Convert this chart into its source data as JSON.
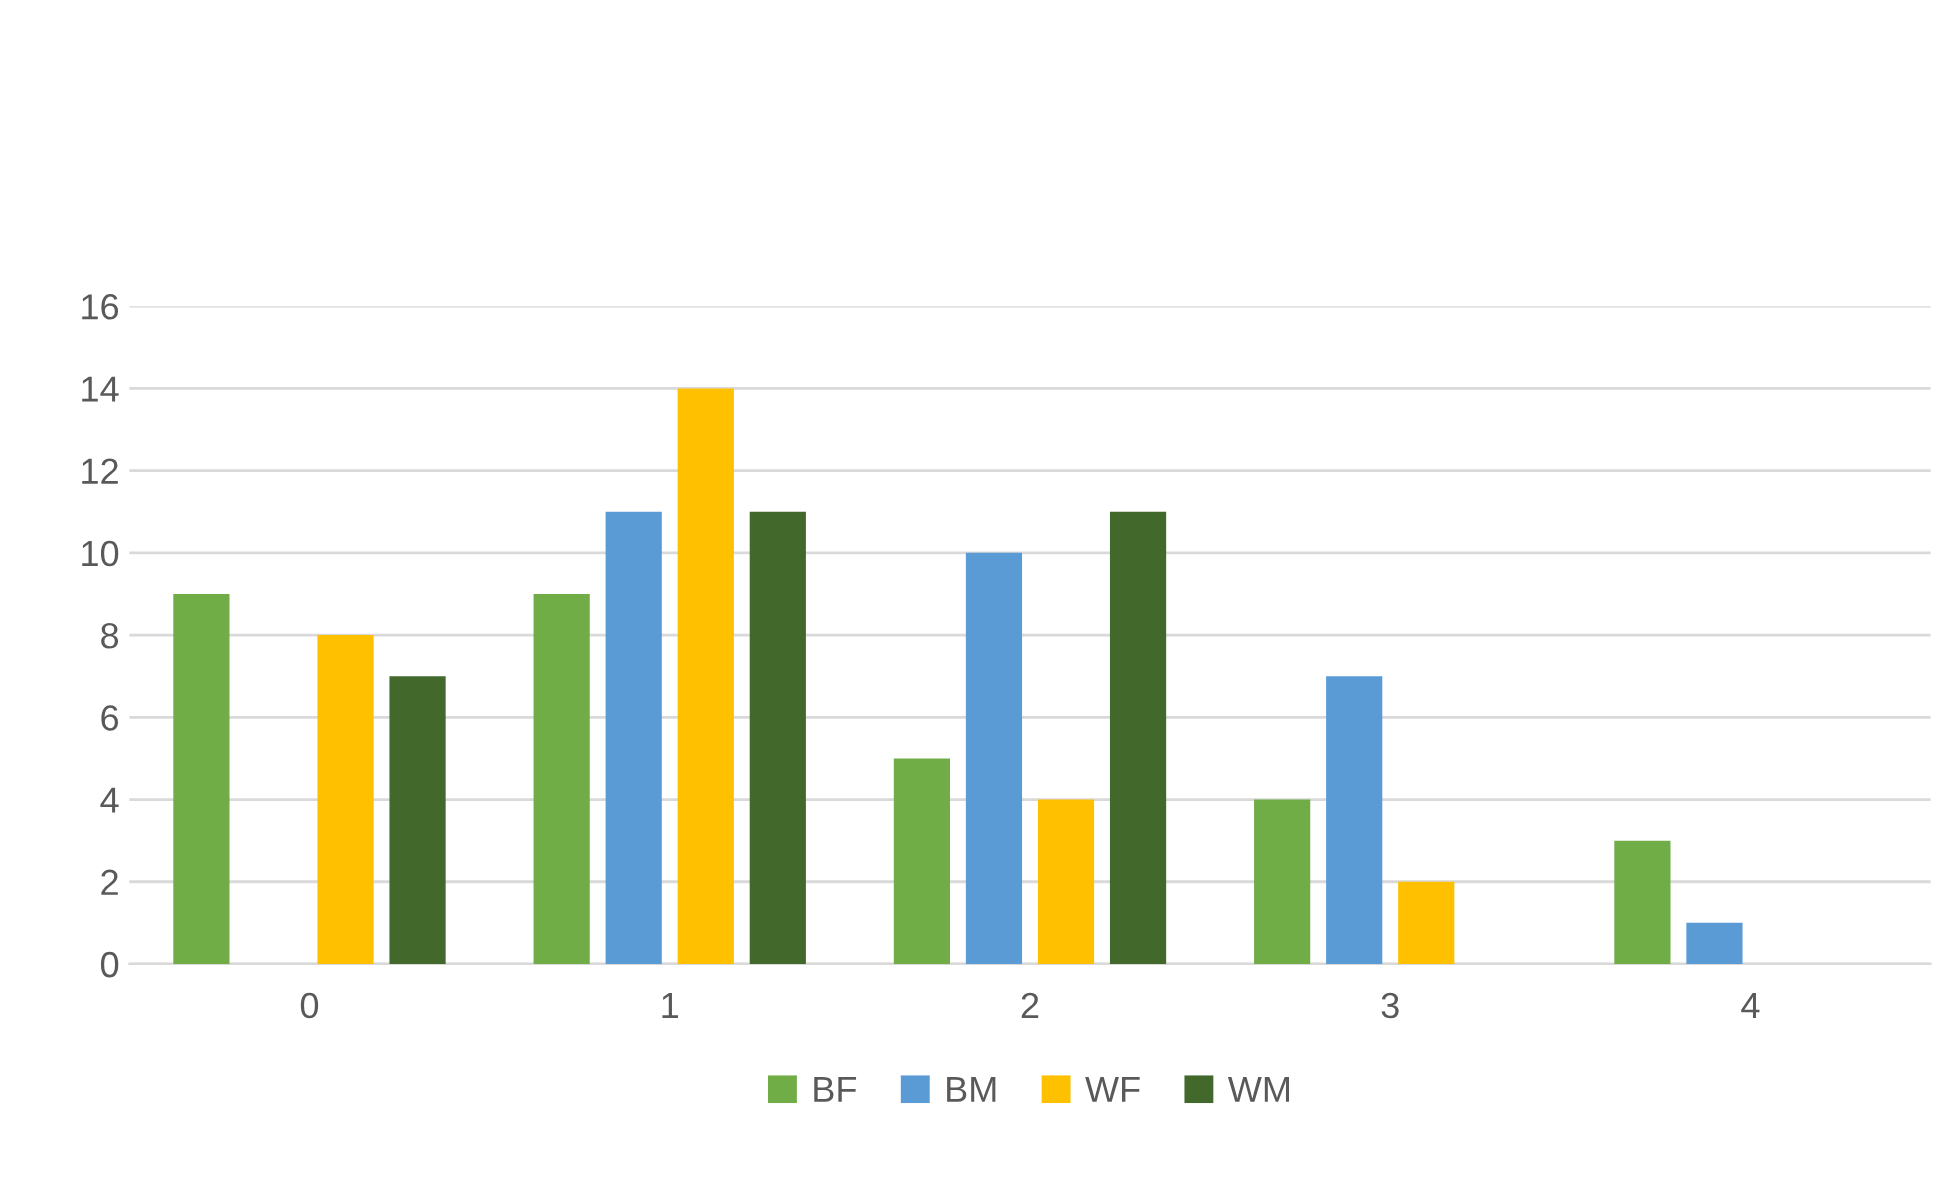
{
  "chart_data": {
    "type": "bar",
    "categories": [
      "0",
      "1",
      "2",
      "3",
      "4"
    ],
    "series": [
      {
        "name": "BF",
        "color": "#70ad47",
        "values": [
          9,
          9,
          5,
          4,
          3
        ]
      },
      {
        "name": "BM",
        "color": "#5b9bd5",
        "values": [
          0,
          11,
          10,
          7,
          1
        ]
      },
      {
        "name": "WF",
        "color": "#ffc000",
        "values": [
          8,
          14,
          4,
          2,
          0
        ]
      },
      {
        "name": "WM",
        "color": "#43682b",
        "values": [
          7,
          11,
          11,
          0,
          0
        ]
      }
    ],
    "ylim": [
      0,
      16
    ],
    "yticks": [
      0,
      2,
      4,
      6,
      8,
      10,
      12,
      14,
      16
    ],
    "grid": "y",
    "legend": "bottom"
  }
}
